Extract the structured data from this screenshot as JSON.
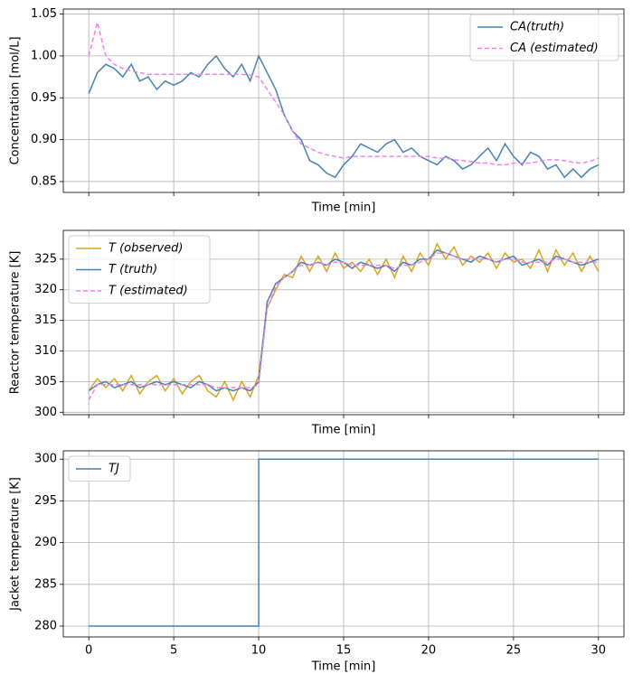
{
  "chart_data": [
    {
      "type": "line",
      "xlabel": "Time [min]",
      "ylabel": "Concentration [mol/L]",
      "grid": true,
      "legend": "upper right",
      "show_xtick_labels": false,
      "xlim": [
        -1.5,
        31.5
      ],
      "ylim": [
        0.837,
        1.056
      ],
      "xticks": [
        0,
        5,
        10,
        15,
        20,
        25,
        30
      ],
      "yticks": [
        0.85,
        {
          "value": 0.9,
          "label": "0.90"
        },
        0.95,
        {
          "value": 1.0,
          "label": "1.00"
        },
        1.05
      ],
      "x": [
        0,
        0.5,
        1,
        1.5,
        2,
        2.5,
        3,
        3.5,
        4,
        4.5,
        5,
        5.5,
        6,
        6.5,
        7,
        7.5,
        8,
        8.5,
        9,
        9.5,
        10,
        10.5,
        11,
        11.5,
        12,
        12.5,
        13,
        13.5,
        14,
        14.5,
        15,
        15.5,
        16,
        16.5,
        17,
        17.5,
        18,
        18.5,
        19,
        19.5,
        20,
        20.5,
        21,
        21.5,
        22,
        22.5,
        23,
        23.5,
        24,
        24.5,
        25,
        25.5,
        26,
        26.5,
        27,
        27.5,
        28,
        28.5,
        29,
        29.5,
        30
      ],
      "series": [
        {
          "name": "CA(truth)",
          "color": "#4682b4",
          "dashed": false,
          "values": [
            0.955,
            0.98,
            0.99,
            0.985,
            0.975,
            0.99,
            0.97,
            0.975,
            0.96,
            0.97,
            0.965,
            0.97,
            0.98,
            0.975,
            0.99,
            1.0,
            0.985,
            0.975,
            0.99,
            0.97,
            1.0,
            0.98,
            0.96,
            0.93,
            0.91,
            0.9,
            0.875,
            0.87,
            0.86,
            0.855,
            0.87,
            0.88,
            0.895,
            0.89,
            0.885,
            0.895,
            0.9,
            0.885,
            0.89,
            0.88,
            0.875,
            0.87,
            0.88,
            0.875,
            0.865,
            0.87,
            0.88,
            0.89,
            0.875,
            0.895,
            0.88,
            0.87,
            0.885,
            0.88,
            0.865,
            0.87,
            0.855,
            0.865,
            0.855,
            0.865,
            0.87
          ]
        },
        {
          "name": "CA (estimated)",
          "color": "#ee82ee",
          "dashed": true,
          "values": [
            1.0,
            1.04,
            1.0,
            0.99,
            0.985,
            0.982,
            0.98,
            0.978,
            0.978,
            0.978,
            0.978,
            0.978,
            0.978,
            0.978,
            0.978,
            0.978,
            0.978,
            0.978,
            0.978,
            0.977,
            0.975,
            0.96,
            0.945,
            0.93,
            0.91,
            0.895,
            0.89,
            0.885,
            0.882,
            0.88,
            0.878,
            0.88,
            0.88,
            0.88,
            0.88,
            0.88,
            0.88,
            0.88,
            0.88,
            0.88,
            0.88,
            0.878,
            0.878,
            0.876,
            0.875,
            0.874,
            0.872,
            0.872,
            0.87,
            0.87,
            0.872,
            0.872,
            0.872,
            0.874,
            0.876,
            0.876,
            0.875,
            0.873,
            0.872,
            0.874,
            0.878
          ]
        }
      ]
    },
    {
      "type": "line",
      "xlabel": "Time [min]",
      "ylabel": "Reactor temperature [K]",
      "grid": true,
      "legend": "upper left",
      "show_xtick_labels": false,
      "xlim": [
        -1.5,
        31.5
      ],
      "ylim": [
        299.6,
        329.7
      ],
      "xticks": [
        0,
        5,
        10,
        15,
        20,
        25,
        30
      ],
      "yticks": [
        300,
        305,
        310,
        315,
        320,
        325
      ],
      "x": [
        0,
        0.5,
        1,
        1.5,
        2,
        2.5,
        3,
        3.5,
        4,
        4.5,
        5,
        5.5,
        6,
        6.5,
        7,
        7.5,
        8,
        8.5,
        9,
        9.5,
        10,
        10.5,
        11,
        11.5,
        12,
        12.5,
        13,
        13.5,
        14,
        14.5,
        15,
        15.5,
        16,
        16.5,
        17,
        17.5,
        18,
        18.5,
        19,
        19.5,
        20,
        20.5,
        21,
        21.5,
        22,
        22.5,
        23,
        23.5,
        24,
        24.5,
        25,
        25.5,
        26,
        26.5,
        27,
        27.5,
        28,
        28.5,
        29,
        29.5,
        30
      ],
      "series": [
        {
          "name": "T (observed)",
          "color": "#daa520",
          "dashed": false,
          "values": [
            303.5,
            305.5,
            304,
            305.5,
            303.5,
            306,
            303,
            305,
            306,
            303.5,
            305.5,
            303,
            305,
            306,
            303.5,
            302.5,
            305,
            302,
            305,
            302.5,
            306,
            317,
            320,
            322.5,
            322,
            325.5,
            323,
            325.5,
            323,
            326,
            323.5,
            324.5,
            323,
            325,
            322.5,
            325,
            322,
            325.5,
            323,
            326,
            324,
            327.5,
            325,
            327,
            324,
            325.5,
            324.5,
            326,
            323.5,
            326,
            324.5,
            325,
            323.5,
            326.5,
            323,
            326.5,
            324,
            326,
            323,
            325.5,
            323
          ]
        },
        {
          "name": "T (truth)",
          "color": "#4682b4",
          "dashed": false,
          "values": [
            303.5,
            304.5,
            305,
            304,
            304.5,
            305,
            304,
            304.5,
            305,
            304.5,
            305,
            304.5,
            304,
            305,
            304.5,
            303.5,
            304,
            303.5,
            304,
            303.5,
            305,
            318,
            321,
            322,
            323,
            324.5,
            324,
            324.5,
            324,
            325,
            324.5,
            323.5,
            324.5,
            324,
            323.5,
            324,
            323,
            324.5,
            324,
            325,
            325,
            326.5,
            326,
            325.5,
            325,
            324.5,
            325.5,
            325,
            324.5,
            325,
            325.5,
            324,
            324.5,
            325,
            324,
            325.5,
            325,
            324.5,
            324,
            324.5,
            325
          ]
        },
        {
          "name": "T (estimated)",
          "color": "#ee82ee",
          "dashed": true,
          "values": [
            302,
            304.5,
            304.5,
            304.5,
            304.5,
            304.5,
            304.5,
            304.5,
            304.5,
            304.5,
            304.5,
            304.5,
            304.5,
            304.5,
            304.5,
            304,
            304,
            304,
            304,
            304,
            304.5,
            317,
            320.5,
            322,
            323,
            324,
            324,
            324.5,
            324,
            324.5,
            324.5,
            324,
            324,
            324,
            324,
            324,
            323.5,
            324,
            324,
            324.5,
            325,
            326,
            326,
            325.5,
            325,
            325,
            325,
            325,
            324.5,
            325,
            325,
            324.5,
            324.5,
            324.5,
            324.5,
            325,
            325,
            324.5,
            324.5,
            324.5,
            324.5
          ]
        }
      ]
    },
    {
      "type": "line",
      "xlabel": "Time [min]",
      "ylabel": "Jacket temperature [K]",
      "grid": true,
      "legend": "upper left",
      "show_xtick_labels": true,
      "xlim": [
        -1.5,
        31.5
      ],
      "ylim": [
        278.7,
        301
      ],
      "xticks": [
        0,
        5,
        10,
        15,
        20,
        25,
        30
      ],
      "yticks": [
        280,
        285,
        290,
        295,
        300
      ],
      "x": [
        0,
        10,
        10,
        30
      ],
      "series": [
        {
          "name": "TJ",
          "color": "#4682b4",
          "dashed": false,
          "values": [
            280,
            280,
            300,
            300
          ]
        }
      ]
    }
  ]
}
